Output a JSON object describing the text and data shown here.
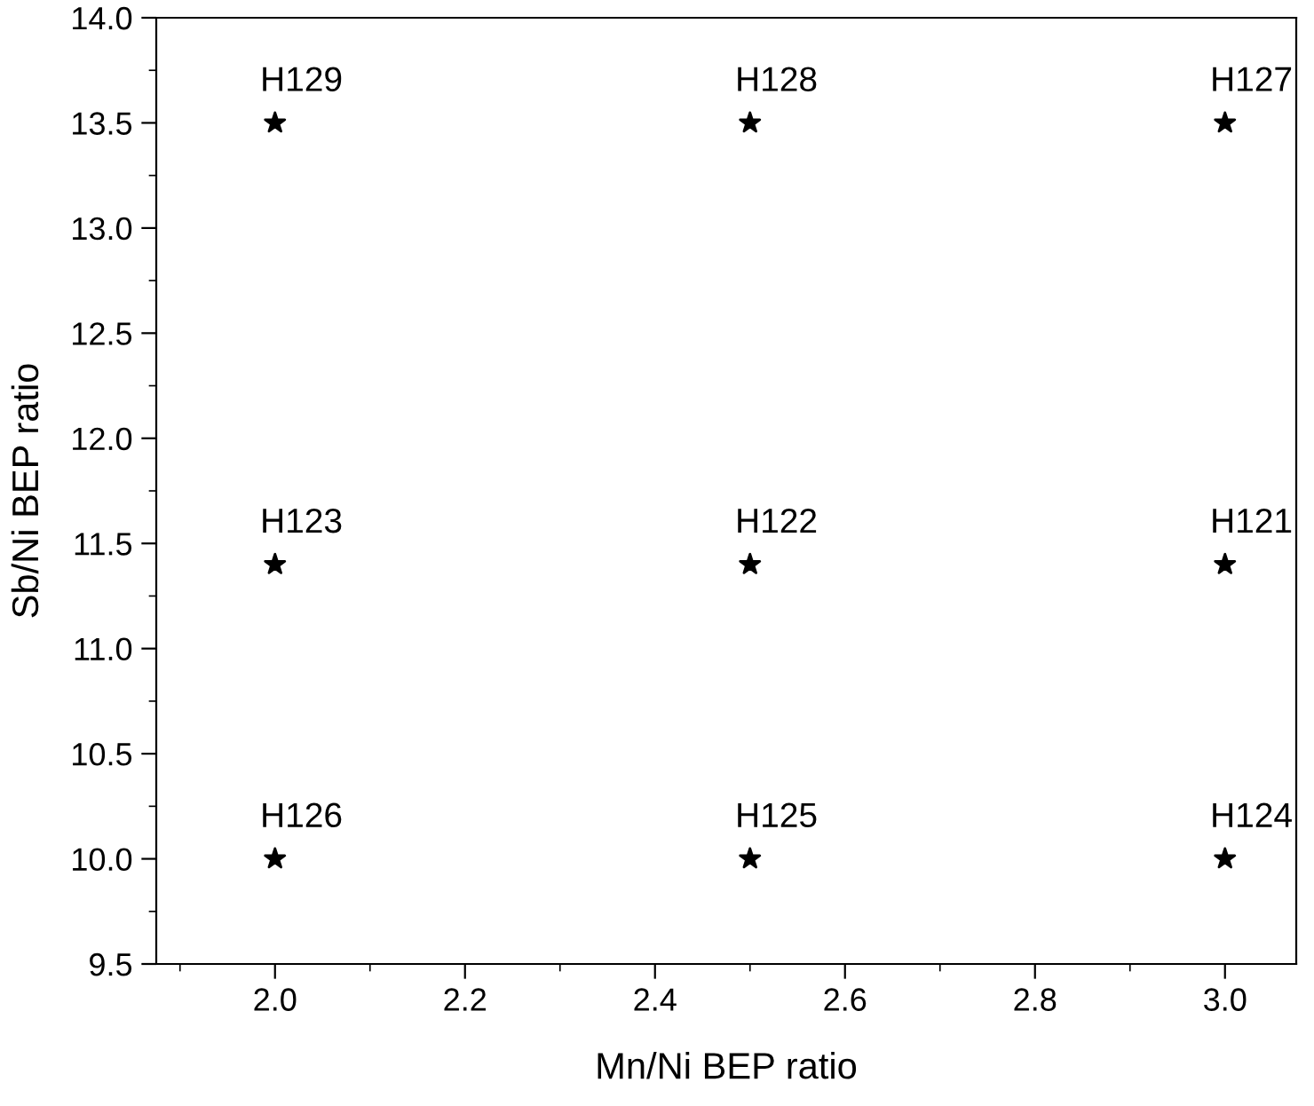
{
  "chart_data": {
    "type": "scatter",
    "xlabel": "Mn/Ni BEP ratio",
    "ylabel": "Sb/Ni BEP ratio",
    "series": [
      {
        "color": "#000000",
        "x": [
          2.0,
          2.5,
          3.0,
          2.0,
          2.5,
          3.0,
          2.0,
          2.5,
          3.0
        ],
        "values": [
          13.5,
          13.5,
          13.5,
          11.4,
          11.4,
          11.4,
          10.0,
          10.0,
          10.0
        ]
      }
    ],
    "marker": "star",
    "grid": false,
    "legend": false,
    "xlim": [
      1.875,
      3.075
    ],
    "xticks": [
      {
        "value": 2.0,
        "label": "2.0"
      },
      {
        "value": 2.2,
        "label": "2.2"
      },
      {
        "value": 2.4,
        "label": "2.4"
      },
      {
        "value": 2.6,
        "label": "2.6"
      },
      {
        "value": 2.8,
        "label": "2.8"
      },
      {
        "value": 3.0,
        "label": "3.0"
      }
    ],
    "ylim": [
      9.5,
      14.0
    ],
    "yticks": [
      {
        "value": 9.5,
        "label": "9.5"
      },
      {
        "value": 10.0,
        "label": "10.0"
      },
      {
        "value": 10.5,
        "label": "10.5"
      },
      {
        "value": 11.0,
        "label": "11.0"
      },
      {
        "value": 11.5,
        "label": "11.5"
      },
      {
        "value": 12.0,
        "label": "12.0"
      },
      {
        "value": 12.5,
        "label": "12.5"
      },
      {
        "value": 13.0,
        "label": "13.0"
      },
      {
        "value": 13.5,
        "label": "13.5"
      },
      {
        "value": 14.0,
        "label": "14.0"
      }
    ],
    "annotations": [
      {
        "text": "H129",
        "x": 2.0,
        "y": 13.5
      },
      {
        "text": "H128",
        "x": 2.5,
        "y": 13.5
      },
      {
        "text": "H127",
        "x": 3.0,
        "y": 13.5
      },
      {
        "text": "H123",
        "x": 2.0,
        "y": 11.4
      },
      {
        "text": "H122",
        "x": 2.5,
        "y": 11.4
      },
      {
        "text": "H121",
        "x": 3.0,
        "y": 11.4
      },
      {
        "text": "H126",
        "x": 2.0,
        "y": 10.0
      },
      {
        "text": "H125",
        "x": 2.5,
        "y": 10.0
      },
      {
        "text": "H124",
        "x": 3.0,
        "y": 10.0
      }
    ]
  }
}
